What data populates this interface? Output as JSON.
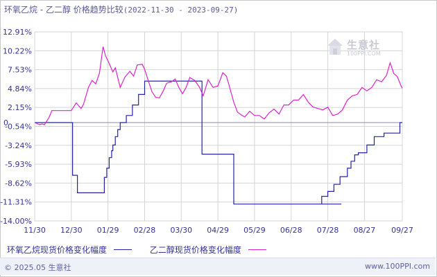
{
  "title": {
    "main": "环氧乙烷 - 乙二醇 价格趋势比较",
    "range": "(2022-11-30 - 2023-09-27)"
  },
  "watermark": {
    "brand": "生意社",
    "url": "100PPI.COM"
  },
  "legend": {
    "series1": "环氧乙烷现货价格变化幅度",
    "series2": "乙二醇现货价格变化幅度"
  },
  "footer": {
    "left": "© 2025.05 生意社",
    "right": "www.100PPI.com"
  },
  "colors": {
    "series1": "#2222aa",
    "series2": "#dd22cc",
    "grid": "#d4d4d4",
    "zero": "#8a8aaa",
    "axisText": "#333399"
  },
  "chart_data": {
    "type": "line",
    "ylim": [
      -14.0,
      12.91
    ],
    "yticks": [
      12.91,
      10.22,
      7.53,
      4.84,
      2.15,
      -0.54,
      -3.24,
      -5.93,
      -8.62,
      -11.31,
      -14.0
    ],
    "ytick_labels": [
      "12.91%",
      "10.22%",
      "7.53%",
      "4.84%",
      "2.15%",
      "-0.54%",
      "-3.24%",
      "-5.93%",
      "-8.62%",
      "-11.31%",
      "-14.00%"
    ],
    "zero_label": "0",
    "xticks": [
      0,
      30,
      60,
      90,
      120,
      150,
      180,
      210,
      240,
      270,
      301
    ],
    "xtick_labels": [
      "11/30",
      "12/30",
      "01/29",
      "02/28",
      "03/30",
      "04/29",
      "05/29",
      "06/28",
      "07/28",
      "08/27",
      "09/27"
    ],
    "xlim": [
      0,
      301
    ],
    "series": [
      {
        "name": "环氧乙烷现货价格变化幅度",
        "x": [
          0,
          31,
          31,
          35,
          35,
          40,
          40,
          57,
          57,
          59,
          59,
          61,
          61,
          63,
          63,
          64,
          64,
          66,
          66,
          68,
          68,
          70,
          70,
          75,
          75,
          80,
          80,
          85,
          85,
          90,
          90,
          96,
          96,
          137,
          137,
          163,
          163,
          205,
          205,
          226,
          226,
          251,
          251,
          235,
          235,
          240,
          240,
          245,
          245,
          250,
          250,
          256,
          256,
          259,
          259,
          262,
          262,
          265,
          265,
          268,
          268,
          272,
          272,
          278,
          278,
          286,
          286,
          293,
          293,
          299,
          299,
          301
        ],
        "y": [
          0.0,
          0.0,
          -7.5,
          -7.5,
          -10.0,
          -10.0,
          -10.0,
          -10.0,
          -7.8,
          -7.8,
          -6.5,
          -6.5,
          -5.0,
          -5.0,
          -4.0,
          -4.0,
          -3.2,
          -3.2,
          -2.0,
          -2.0,
          -1.0,
          -1.0,
          0.0,
          0.0,
          1.0,
          1.0,
          2.5,
          2.5,
          4.0,
          4.0,
          5.9,
          5.9,
          5.9,
          5.9,
          -4.5,
          -4.5,
          -11.6,
          -11.6,
          -11.6,
          -11.6,
          -11.6,
          -11.6,
          -11.6,
          -11.6,
          -10.5,
          -10.5,
          -9.8,
          -9.8,
          -8.8,
          -8.8,
          -7.7,
          -7.7,
          -6.5,
          -6.5,
          -5.5,
          -5.5,
          -4.6,
          -4.6,
          -4.3,
          -4.3,
          -4.3,
          -4.3,
          -3.2,
          -3.2,
          -2.0,
          -2.0,
          -1.5,
          -1.5,
          -1.5,
          -1.5,
          0.0,
          0.0
        ]
      },
      {
        "name": "乙二醇现货价格变化幅度",
        "x": [
          0,
          4,
          6,
          8,
          12,
          14,
          22,
          30,
          34,
          38,
          40,
          44,
          47,
          50,
          53,
          56,
          58,
          60,
          62,
          64,
          66,
          70,
          74,
          78,
          81,
          84,
          88,
          90,
          92,
          96,
          99,
          102,
          105,
          108,
          112,
          115,
          118,
          121,
          124,
          127,
          131,
          135,
          138,
          142,
          146,
          150,
          154,
          157,
          160,
          163,
          166,
          169,
          172,
          176,
          180,
          184,
          188,
          192,
          196,
          200,
          204,
          208,
          212,
          216,
          220,
          224,
          228,
          232,
          236,
          240,
          244,
          248,
          252,
          256,
          260,
          264,
          268,
          272,
          276,
          280,
          284,
          288,
          291,
          294,
          297,
          300,
          301
        ],
        "y": [
          0.0,
          -0.3,
          -0.2,
          -0.3,
          0.8,
          1.7,
          1.7,
          1.7,
          2.8,
          2.0,
          2.6,
          5.0,
          6.0,
          5.5,
          7.0,
          10.8,
          9.5,
          8.8,
          8.0,
          7.2,
          7.8,
          5.0,
          6.5,
          7.3,
          6.6,
          8.2,
          8.3,
          7.6,
          6.5,
          4.4,
          3.6,
          3.5,
          4.4,
          5.6,
          5.8,
          6.2,
          5.0,
          4.1,
          5.0,
          6.4,
          6.0,
          5.0,
          3.8,
          6.1,
          5.0,
          5.2,
          7.1,
          6.6,
          4.8,
          2.9,
          1.5,
          1.1,
          0.8,
          1.6,
          1.0,
          1.0,
          0.5,
          1.4,
          1.9,
          1.2,
          2.5,
          2.5,
          3.2,
          3.2,
          4.0,
          2.9,
          2.2,
          2.0,
          1.8,
          2.2,
          1.0,
          1.2,
          1.8,
          3.2,
          3.8,
          4.0,
          5.0,
          4.5,
          5.0,
          6.1,
          5.8,
          6.7,
          8.5,
          7.0,
          6.5,
          5.2,
          4.9
        ]
      }
    ]
  }
}
